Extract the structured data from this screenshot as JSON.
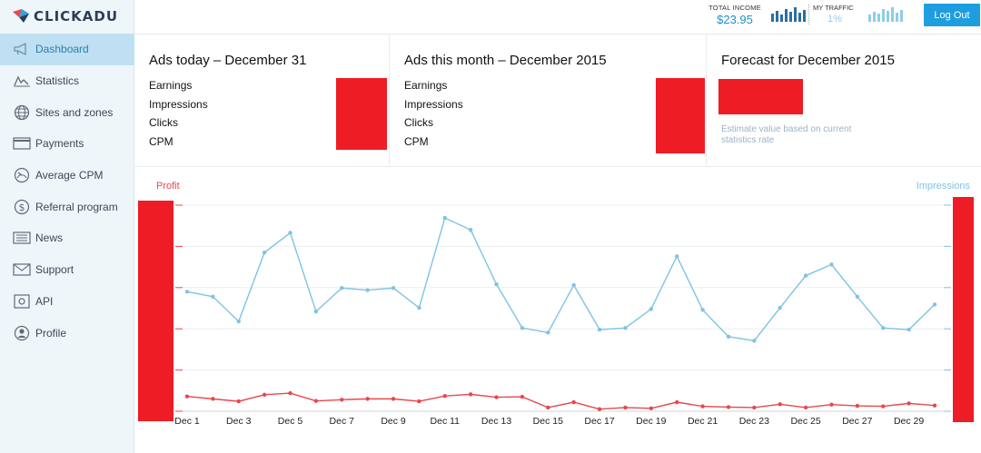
{
  "app": {
    "name": "CLICKADU"
  },
  "sidebar": {
    "items": [
      {
        "label": "Dashboard",
        "icon": "megaphone-icon",
        "active": true
      },
      {
        "label": "Statistics",
        "icon": "line-chart-icon"
      },
      {
        "label": "Sites and zones",
        "icon": "globe-icon"
      },
      {
        "label": "Payments",
        "icon": "card-icon"
      },
      {
        "label": "Average CPM",
        "icon": "gauge-icon"
      },
      {
        "label": "Referral program",
        "icon": "dollar-icon"
      },
      {
        "label": "News",
        "icon": "news-icon"
      },
      {
        "label": "Support",
        "icon": "envelope-icon"
      },
      {
        "label": "API",
        "icon": "api-icon"
      },
      {
        "label": "Profile",
        "icon": "user-icon"
      }
    ]
  },
  "header": {
    "total_income_label": "TOTAL INCOME",
    "total_income_value": "$23.95",
    "my_traffic_label": "MY TRAFFIC",
    "my_traffic_value": "1%",
    "logout_label": "Log Out",
    "colors": {
      "accent": "#1e9ee0",
      "income_bars": "#2a6fa0",
      "traffic_bars": "#8fcde8"
    }
  },
  "cards": [
    {
      "title": "Ads today – December 31",
      "rows": [
        "Earnings",
        "Impressions",
        "Clicks",
        "CPM"
      ]
    },
    {
      "title": "Ads this month – December 2015",
      "rows": [
        "Earnings",
        "Impressions",
        "Clicks",
        "CPM"
      ]
    },
    {
      "title": "Forecast for December 2015",
      "note": "Estimate value based on current statistics rate"
    }
  ],
  "chart_data": {
    "type": "line",
    "left_axis_label": "Profit",
    "right_axis_label": "Impressions",
    "x": [
      "Dec 1",
      "Dec 2",
      "Dec 3",
      "Dec 4",
      "Dec 5",
      "Dec 6",
      "Dec 7",
      "Dec 8",
      "Dec 9",
      "Dec 10",
      "Dec 11",
      "Dec 12",
      "Dec 13",
      "Dec 14",
      "Dec 15",
      "Dec 16",
      "Dec 17",
      "Dec 18",
      "Dec 19",
      "Dec 20",
      "Dec 21",
      "Dec 22",
      "Dec 23",
      "Dec 24",
      "Dec 25",
      "Dec 26",
      "Dec 27",
      "Dec 28",
      "Dec 29",
      "Dec 30"
    ],
    "x_tick_labels": [
      "Dec 1",
      "Dec 3",
      "Dec 5",
      "Dec 7",
      "Dec 9",
      "Dec 11",
      "Dec 13",
      "Dec 15",
      "Dec 17",
      "Dec 19",
      "Dec 21",
      "Dec 23",
      "Dec 25",
      "Dec 27",
      "Dec 29"
    ],
    "ylim": [
      0,
      5
    ],
    "grid": true,
    "series": [
      {
        "name": "Impressions",
        "color": "#7fc3e4",
        "axis": "right",
        "values": [
          2.9,
          2.78,
          2.18,
          3.85,
          4.33,
          2.42,
          2.99,
          2.94,
          2.99,
          2.51,
          4.69,
          4.4,
          3.08,
          2.02,
          1.91,
          3.06,
          1.98,
          2.02,
          2.48,
          3.76,
          2.46,
          1.81,
          1.71,
          2.51,
          3.29,
          3.56,
          2.78,
          2.02,
          1.98,
          2.59
        ]
      },
      {
        "name": "Profit",
        "color": "#e9474d",
        "axis": "left",
        "values": [
          0.36,
          0.3,
          0.24,
          0.4,
          0.44,
          0.25,
          0.28,
          0.3,
          0.3,
          0.24,
          0.37,
          0.41,
          0.34,
          0.35,
          0.09,
          0.22,
          0.05,
          0.09,
          0.07,
          0.22,
          0.12,
          0.1,
          0.09,
          0.17,
          0.09,
          0.16,
          0.13,
          0.12,
          0.19,
          0.14
        ]
      }
    ]
  }
}
